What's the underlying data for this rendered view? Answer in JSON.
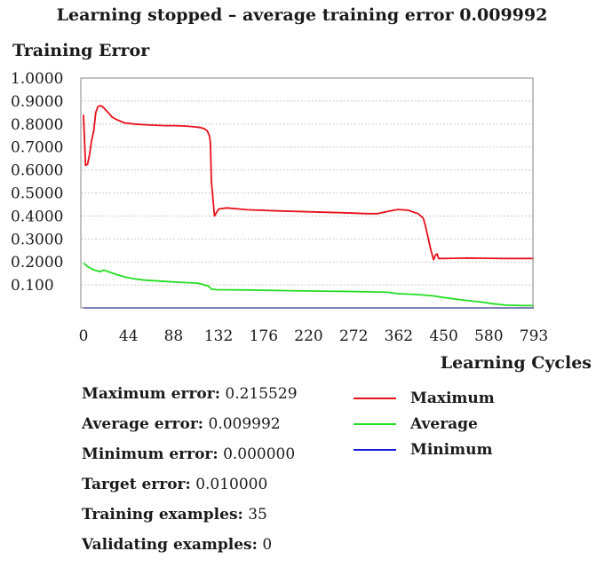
{
  "chart_data": {
    "type": "line",
    "title": "Learning stopped – average training error 0.009992",
    "ylabel": "Training Error",
    "xlabel": "Learning Cycles",
    "ylim": [
      0,
      1.0
    ],
    "y_ticks": [
      "1.0000",
      "0.9000",
      "0.8000",
      "0.7000",
      "0.6000",
      "0.5000",
      "0.4000",
      "0.3000",
      "0.2000",
      "0.100"
    ],
    "y_tick_values": [
      1.0,
      0.9,
      0.8,
      0.7,
      0.6,
      0.5,
      0.4,
      0.3,
      0.2,
      0.1
    ],
    "x_ticks": [
      "0",
      "44",
      "88",
      "132",
      "176",
      "220",
      "272",
      "362",
      "450",
      "580",
      "793"
    ],
    "grid": true,
    "series": [
      {
        "name": "Maximum",
        "color": "#e8101a",
        "x": [
          0,
          2,
          4,
          6,
          8,
          10,
          12,
          14,
          16,
          18,
          20,
          22,
          24,
          28,
          32,
          40,
          50,
          60,
          70,
          80,
          90,
          100,
          108,
          114,
          118,
          121,
          123,
          124,
          125,
          128,
          132,
          140,
          160,
          190,
          220,
          260,
          300,
          320,
          340,
          360,
          380,
          400,
          410,
          415,
          420,
          425,
          430,
          434,
          437,
          440,
          450,
          480,
          520,
          580,
          650,
          793
        ],
        "y": [
          0.84,
          0.62,
          0.625,
          0.67,
          0.73,
          0.77,
          0.85,
          0.875,
          0.88,
          0.878,
          0.87,
          0.86,
          0.85,
          0.83,
          0.82,
          0.805,
          0.8,
          0.797,
          0.795,
          0.793,
          0.793,
          0.791,
          0.788,
          0.785,
          0.78,
          0.77,
          0.75,
          0.72,
          0.55,
          0.4,
          0.43,
          0.435,
          0.427,
          0.422,
          0.418,
          0.414,
          0.41,
          0.41,
          0.42,
          0.428,
          0.425,
          0.41,
          0.39,
          0.35,
          0.3,
          0.25,
          0.21,
          0.23,
          0.235,
          0.215,
          0.215,
          0.216,
          0.217,
          0.216,
          0.215,
          0.215
        ]
      },
      {
        "name": "Average",
        "color": "#22dd22",
        "x": [
          0,
          4,
          8,
          12,
          16,
          20,
          24,
          28,
          32,
          40,
          50,
          60,
          80,
          100,
          110,
          114,
          118,
          122,
          125,
          130,
          160,
          200,
          260,
          300,
          340,
          360,
          400,
          430,
          450,
          500,
          560,
          600,
          660,
          740,
          793
        ],
        "y": [
          0.195,
          0.18,
          0.17,
          0.163,
          0.158,
          0.165,
          0.158,
          0.152,
          0.145,
          0.135,
          0.126,
          0.121,
          0.115,
          0.11,
          0.108,
          0.105,
          0.1,
          0.095,
          0.082,
          0.079,
          0.078,
          0.075,
          0.072,
          0.07,
          0.068,
          0.062,
          0.058,
          0.052,
          0.045,
          0.035,
          0.025,
          0.018,
          0.012,
          0.01,
          0.009992
        ]
      },
      {
        "name": "Minimum",
        "color": "#1a1adc",
        "x": [
          0,
          793
        ],
        "y": [
          0,
          0
        ]
      }
    ]
  },
  "stats": [
    {
      "label": "Maximum error:",
      "value": "0.215529"
    },
    {
      "label": "Average error:",
      "value": "0.009992"
    },
    {
      "label": "Minimum error:",
      "value": "0.000000"
    },
    {
      "label": "Target error:",
      "value": "0.010000"
    },
    {
      "label": "Training examples:",
      "value": "35"
    },
    {
      "label": "Validating examples:",
      "value": "0"
    }
  ],
  "legend": [
    {
      "label": "Maximum",
      "color": "#e8101a"
    },
    {
      "label": "Average",
      "color": "#22dd22"
    },
    {
      "label": "Minimum",
      "color": "#1a1adc"
    }
  ]
}
